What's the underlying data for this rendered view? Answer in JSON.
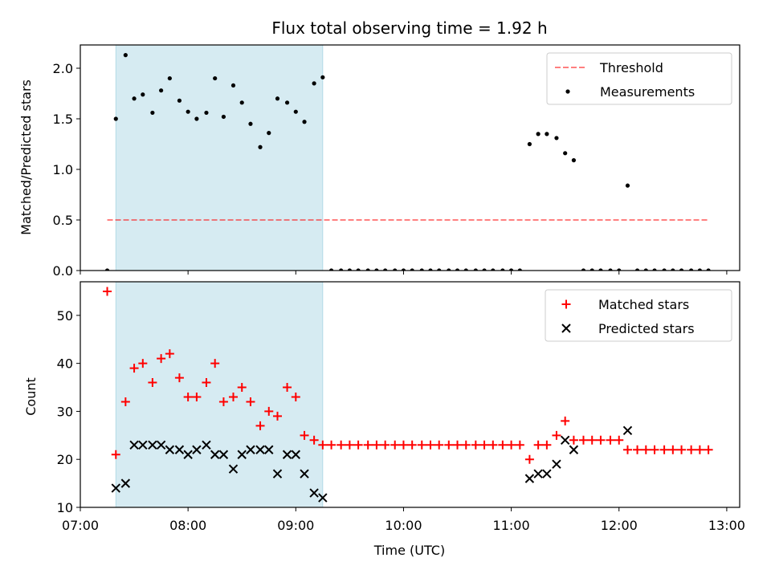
{
  "chart_data": [
    {
      "type": "scatter",
      "panel": "top",
      "title": "Flux total observing time = 1.92 h",
      "xlabel": "",
      "ylabel": "Matched/Predicted stars",
      "xlim": [
        7.0,
        13.12
      ],
      "ylim": [
        0.0,
        2.23
      ],
      "yticks": [
        0.0,
        0.5,
        1.0,
        1.5,
        2.0
      ],
      "ytick_labels": [
        "0.0",
        "0.5",
        "1.0",
        "1.5",
        "2.0"
      ],
      "shaded_span": {
        "x0": 7.33,
        "x1": 9.25,
        "color": "#add8e6"
      },
      "legend_position": "top-right",
      "series": [
        {
          "name": "Threshold",
          "kind": "dashed-line",
          "color": "#ff0000",
          "points": [
            [
              7.25,
              0.5
            ],
            [
              12.83,
              0.5
            ]
          ]
        },
        {
          "name": "Measurements",
          "kind": "dot",
          "color": "#000000",
          "points": [
            [
              7.25,
              0.0
            ],
            [
              7.33,
              1.5
            ],
            [
              7.42,
              2.13
            ],
            [
              7.5,
              1.7
            ],
            [
              7.58,
              1.74
            ],
            [
              7.67,
              1.56
            ],
            [
              7.75,
              1.78
            ],
            [
              7.83,
              1.9
            ],
            [
              7.92,
              1.68
            ],
            [
              8.0,
              1.57
            ],
            [
              8.08,
              1.5
            ],
            [
              8.17,
              1.56
            ],
            [
              8.25,
              1.9
            ],
            [
              8.33,
              1.52
            ],
            [
              8.42,
              1.83
            ],
            [
              8.5,
              1.66
            ],
            [
              8.58,
              1.45
            ],
            [
              8.67,
              1.22
            ],
            [
              8.75,
              1.36
            ],
            [
              8.83,
              1.7
            ],
            [
              8.92,
              1.66
            ],
            [
              9.0,
              1.57
            ],
            [
              9.08,
              1.47
            ],
            [
              9.17,
              1.85
            ],
            [
              9.25,
              1.91
            ],
            [
              9.33,
              0.0
            ],
            [
              9.42,
              0.0
            ],
            [
              9.5,
              0.0
            ],
            [
              9.58,
              0.0
            ],
            [
              9.67,
              0.0
            ],
            [
              9.75,
              0.0
            ],
            [
              9.83,
              0.0
            ],
            [
              9.92,
              0.0
            ],
            [
              10.0,
              0.0
            ],
            [
              10.08,
              0.0
            ],
            [
              10.17,
              0.0
            ],
            [
              10.25,
              0.0
            ],
            [
              10.33,
              0.0
            ],
            [
              10.42,
              0.0
            ],
            [
              10.5,
              0.0
            ],
            [
              10.58,
              0.0
            ],
            [
              10.67,
              0.0
            ],
            [
              10.75,
              0.0
            ],
            [
              10.83,
              0.0
            ],
            [
              10.92,
              0.0
            ],
            [
              11.0,
              0.0
            ],
            [
              11.08,
              0.0
            ],
            [
              11.17,
              1.25
            ],
            [
              11.25,
              1.35
            ],
            [
              11.33,
              1.35
            ],
            [
              11.42,
              1.31
            ],
            [
              11.5,
              1.16
            ],
            [
              11.58,
              1.09
            ],
            [
              11.67,
              0.0
            ],
            [
              11.75,
              0.0
            ],
            [
              11.83,
              0.0
            ],
            [
              11.92,
              0.0
            ],
            [
              12.0,
              0.0
            ],
            [
              12.08,
              0.84
            ],
            [
              12.17,
              0.0
            ],
            [
              12.25,
              0.0
            ],
            [
              12.33,
              0.0
            ],
            [
              12.42,
              0.0
            ],
            [
              12.5,
              0.0
            ],
            [
              12.58,
              0.0
            ],
            [
              12.67,
              0.0
            ],
            [
              12.75,
              0.0
            ],
            [
              12.83,
              0.0
            ]
          ]
        }
      ]
    },
    {
      "type": "scatter",
      "panel": "bottom",
      "title": "",
      "xlabel": "Time (UTC)",
      "ylabel": "Count",
      "xlim": [
        7.0,
        13.12
      ],
      "ylim": [
        10,
        57
      ],
      "yticks": [
        10,
        20,
        30,
        40,
        50
      ],
      "ytick_labels": [
        "10",
        "20",
        "30",
        "40",
        "50"
      ],
      "xticks": [
        7,
        8,
        9,
        10,
        11,
        12,
        13
      ],
      "xtick_labels": [
        "07:00",
        "08:00",
        "09:00",
        "10:00",
        "11:00",
        "12:00",
        "13:00"
      ],
      "shaded_span": {
        "x0": 7.33,
        "x1": 9.25,
        "color": "#add8e6"
      },
      "legend_position": "top-right",
      "series": [
        {
          "name": "Matched stars",
          "kind": "plus",
          "color": "#ff0000",
          "points": [
            [
              7.25,
              55
            ],
            [
              7.33,
              21
            ],
            [
              7.42,
              32
            ],
            [
              7.5,
              39
            ],
            [
              7.58,
              40
            ],
            [
              7.67,
              36
            ],
            [
              7.75,
              41
            ],
            [
              7.83,
              42
            ],
            [
              7.92,
              37
            ],
            [
              8.0,
              33
            ],
            [
              8.08,
              33
            ],
            [
              8.17,
              36
            ],
            [
              8.25,
              40
            ],
            [
              8.33,
              32
            ],
            [
              8.42,
              33
            ],
            [
              8.5,
              35
            ],
            [
              8.58,
              32
            ],
            [
              8.67,
              27
            ],
            [
              8.75,
              30
            ],
            [
              8.83,
              29
            ],
            [
              8.92,
              35
            ],
            [
              9.0,
              33
            ],
            [
              9.08,
              25
            ],
            [
              9.17,
              24
            ],
            [
              9.25,
              23
            ],
            [
              9.33,
              23
            ],
            [
              9.42,
              23
            ],
            [
              9.5,
              23
            ],
            [
              9.58,
              23
            ],
            [
              9.67,
              23
            ],
            [
              9.75,
              23
            ],
            [
              9.83,
              23
            ],
            [
              9.92,
              23
            ],
            [
              10.0,
              23
            ],
            [
              10.08,
              23
            ],
            [
              10.17,
              23
            ],
            [
              10.25,
              23
            ],
            [
              10.33,
              23
            ],
            [
              10.42,
              23
            ],
            [
              10.5,
              23
            ],
            [
              10.58,
              23
            ],
            [
              10.67,
              23
            ],
            [
              10.75,
              23
            ],
            [
              10.83,
              23
            ],
            [
              10.92,
              23
            ],
            [
              11.0,
              23
            ],
            [
              11.08,
              23
            ],
            [
              11.17,
              20
            ],
            [
              11.25,
              23
            ],
            [
              11.33,
              23
            ],
            [
              11.42,
              25
            ],
            [
              11.5,
              28
            ],
            [
              11.58,
              24
            ],
            [
              11.67,
              24
            ],
            [
              11.75,
              24
            ],
            [
              11.83,
              24
            ],
            [
              11.92,
              24
            ],
            [
              12.0,
              24
            ],
            [
              12.08,
              22
            ],
            [
              12.17,
              22
            ],
            [
              12.25,
              22
            ],
            [
              12.33,
              22
            ],
            [
              12.42,
              22
            ],
            [
              12.5,
              22
            ],
            [
              12.58,
              22
            ],
            [
              12.67,
              22
            ],
            [
              12.75,
              22
            ],
            [
              12.83,
              22
            ]
          ]
        },
        {
          "name": "Predicted stars",
          "kind": "x",
          "color": "#000000",
          "points": [
            [
              7.33,
              14
            ],
            [
              7.42,
              15
            ],
            [
              7.5,
              23
            ],
            [
              7.58,
              23
            ],
            [
              7.67,
              23
            ],
            [
              7.75,
              23
            ],
            [
              7.83,
              22
            ],
            [
              7.92,
              22
            ],
            [
              8.0,
              21
            ],
            [
              8.08,
              22
            ],
            [
              8.17,
              23
            ],
            [
              8.25,
              21
            ],
            [
              8.33,
              21
            ],
            [
              8.42,
              18
            ],
            [
              8.5,
              21
            ],
            [
              8.58,
              22
            ],
            [
              8.67,
              22
            ],
            [
              8.75,
              22
            ],
            [
              8.83,
              17
            ],
            [
              8.92,
              21
            ],
            [
              9.0,
              21
            ],
            [
              9.08,
              17
            ],
            [
              9.17,
              13
            ],
            [
              9.25,
              12
            ],
            [
              11.17,
              16
            ],
            [
              11.25,
              17
            ],
            [
              11.33,
              17
            ],
            [
              11.42,
              19
            ],
            [
              11.5,
              24
            ],
            [
              11.58,
              22
            ],
            [
              12.08,
              26
            ]
          ]
        }
      ]
    }
  ]
}
